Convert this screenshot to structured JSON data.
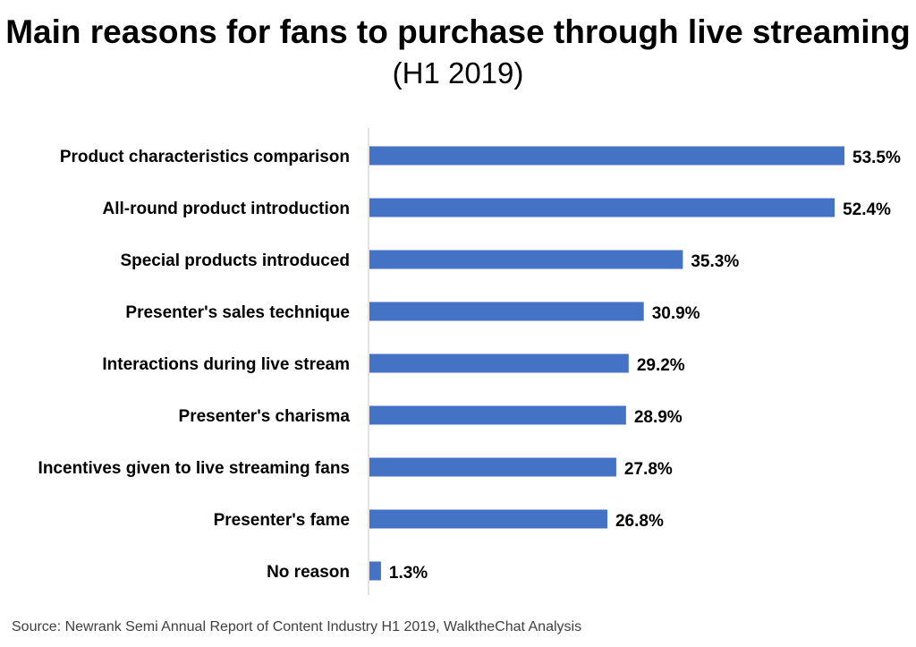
{
  "title": "Main reasons for fans to purchase through live streaming",
  "subtitle": "(H1 2019)",
  "source": "Source: Newrank Semi Annual Report of Content Industry H1 2019, WalktheChat Analysis",
  "colors": {
    "bar": "#4472C4",
    "axis": "#D9D9D9"
  },
  "chart_data": {
    "type": "bar",
    "orientation": "horizontal",
    "title": "Main reasons for fans to purchase through live streaming",
    "subtitle": "(H1 2019)",
    "xlabel": "",
    "ylabel": "",
    "grid": false,
    "legend": "none",
    "xlim": [
      0,
      53.5
    ],
    "categories": [
      "Product characteristics comparison",
      "All-round product introduction",
      "Special products introduced",
      "Presenter's sales technique",
      "Interactions during live stream",
      "Presenter's charisma",
      "Incentives given to live streaming fans",
      "Presenter's fame",
      "No reason"
    ],
    "values": [
      53.5,
      52.4,
      35.3,
      30.9,
      29.2,
      28.9,
      27.8,
      26.8,
      1.3
    ],
    "value_labels": [
      "53.5%",
      "52.4%",
      "35.3%",
      "30.9%",
      "29.2%",
      "28.9%",
      "27.8%",
      "26.8%",
      "1.3%"
    ]
  }
}
